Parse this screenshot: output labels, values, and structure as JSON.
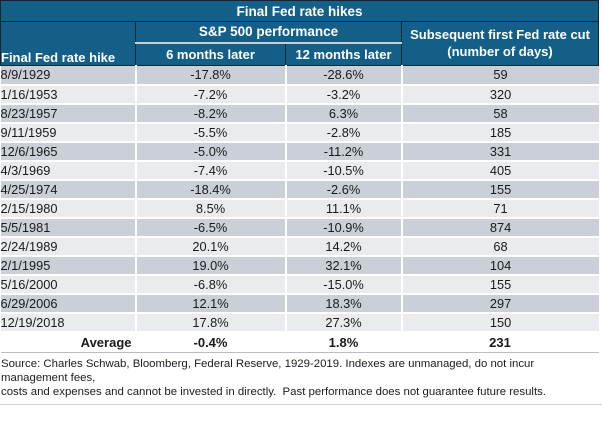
{
  "title": "Final Fed rate hikes",
  "header": {
    "col_date": "Final Fed rate hike",
    "sp500_group": "S&P 500 performance",
    "col_6mo": "6 months later",
    "col_12mo": "12 months later",
    "col_cut_line1": "Subsequent first Fed rate cut",
    "col_cut_line2": "(number of days)"
  },
  "table": {
    "rows": [
      {
        "date": "8/9/1929",
        "six_mo": "-17.8%",
        "twelve_mo": "-28.6%",
        "days": "59"
      },
      {
        "date": "1/16/1953",
        "six_mo": "-7.2%",
        "twelve_mo": "-3.2%",
        "days": "320"
      },
      {
        "date": "8/23/1957",
        "six_mo": "-8.2%",
        "twelve_mo": "6.3%",
        "days": "58"
      },
      {
        "date": "9/11/1959",
        "six_mo": "-5.5%",
        "twelve_mo": "-2.8%",
        "days": "185"
      },
      {
        "date": "12/6/1965",
        "six_mo": "-5.0%",
        "twelve_mo": "-11.2%",
        "days": "331"
      },
      {
        "date": "4/3/1969",
        "six_mo": "-7.4%",
        "twelve_mo": "-10.5%",
        "days": "405"
      },
      {
        "date": "4/25/1974",
        "six_mo": "-18.4%",
        "twelve_mo": "-2.6%",
        "days": "155"
      },
      {
        "date": "2/15/1980",
        "six_mo": "8.5%",
        "twelve_mo": "11.1%",
        "days": "71"
      },
      {
        "date": "5/5/1981",
        "six_mo": "-6.5%",
        "twelve_mo": "-10.9%",
        "days": "874"
      },
      {
        "date": "2/24/1989",
        "six_mo": "20.1%",
        "twelve_mo": "14.2%",
        "days": "68"
      },
      {
        "date": "2/1/1995",
        "six_mo": "19.0%",
        "twelve_mo": "32.1%",
        "days": "104"
      },
      {
        "date": "5/16/2000",
        "six_mo": "-6.8%",
        "twelve_mo": "-15.0%",
        "days": "155"
      },
      {
        "date": "6/29/2006",
        "six_mo": "12.1%",
        "twelve_mo": "18.3%",
        "days": "297"
      },
      {
        "date": "12/19/2018",
        "six_mo": "17.8%",
        "twelve_mo": "27.3%",
        "days": "150"
      }
    ],
    "average": {
      "label": "Average",
      "six_mo": "-0.4%",
      "twelve_mo": "1.8%",
      "days": "231"
    }
  },
  "footer": {
    "line1": "Source: Charles Schwab, Bloomberg, Federal Reserve, 1929-2019. Indexes are unmanaged, do not incur management fees,",
    "line2": "costs and expenses and cannot be invested in directly.  Past performance does not guarantee future results."
  },
  "colors": {
    "header_bg": "#135f88",
    "border_dark": "#17242c",
    "row_odd": "#cbd0d8",
    "row_even": "#e9ebef",
    "light_line": "#c9ced4"
  },
  "chart_data": {
    "type": "table",
    "title": "Final Fed rate hikes",
    "column_groups": [
      {
        "label": "S&P 500 performance",
        "columns": [
          "6 months later",
          "12 months later"
        ]
      }
    ],
    "columns": [
      "Final Fed rate hike",
      "6 months later",
      "12 months later",
      "Subsequent first Fed rate cut (number of days)"
    ],
    "rows": [
      [
        "8/9/1929",
        -17.8,
        -28.6,
        59
      ],
      [
        "1/16/1953",
        -7.2,
        -3.2,
        320
      ],
      [
        "8/23/1957",
        -8.2,
        6.3,
        58
      ],
      [
        "9/11/1959",
        -5.5,
        -2.8,
        185
      ],
      [
        "12/6/1965",
        -5.0,
        -11.2,
        331
      ],
      [
        "4/3/1969",
        -7.4,
        -10.5,
        405
      ],
      [
        "4/25/1974",
        -18.4,
        -2.6,
        155
      ],
      [
        "2/15/1980",
        8.5,
        11.1,
        71
      ],
      [
        "5/5/1981",
        -6.5,
        -10.9,
        874
      ],
      [
        "2/24/1989",
        20.1,
        14.2,
        68
      ],
      [
        "2/1/1995",
        19.0,
        32.1,
        104
      ],
      [
        "5/16/2000",
        -6.8,
        -15.0,
        155
      ],
      [
        "6/29/2006",
        12.1,
        18.3,
        297
      ],
      [
        "12/19/2018",
        17.8,
        27.3,
        150
      ]
    ],
    "average_row": [
      "Average",
      -0.4,
      1.8,
      231
    ],
    "source_note": "Source: Charles Schwab, Bloomberg, Federal Reserve, 1929-2019. Indexes are unmanaged, do not incur management fees, costs and expenses and cannot be invested in directly. Past performance does not guarantee future results."
  }
}
